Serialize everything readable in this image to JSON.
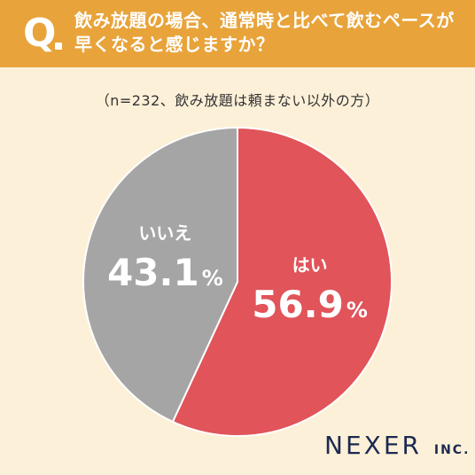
{
  "header": {
    "q_label": "Q",
    "question": "飲み放題の場合、通常時と比べて飲むペースが早くなると感じますか？"
  },
  "note": "（n=232、飲み放題は頼まない以外の方）",
  "brand": {
    "name": "NEXER",
    "suffix": "INC."
  },
  "colors": {
    "header_bg": "#e8a33a",
    "page_bg": "#fdf0d8",
    "yes": "#e0545a",
    "no": "#a5a5a5"
  },
  "chart_data": {
    "type": "pie",
    "slices": [
      {
        "label": "はい",
        "value": 56.9,
        "display": "56.9",
        "unit": "%",
        "color": "#e0545a"
      },
      {
        "label": "いいえ",
        "value": 43.1,
        "display": "43.1",
        "unit": "%",
        "color": "#a5a5a5"
      }
    ],
    "start": "12 o'clock",
    "direction": "clockwise"
  }
}
